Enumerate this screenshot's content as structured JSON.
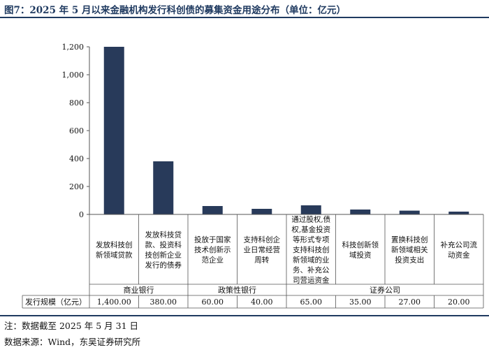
{
  "title": "图7：2025 年 5 月以来金融机构发行科创债的募集资金用途分布（单位：亿元）",
  "notes": {
    "note": "注：数据截至 2025 年 5 月 31 日",
    "source": "数据来源：Wind，东吴证券研究所"
  },
  "colors": {
    "bar": "#283a5a",
    "frame": "#1f3a60",
    "axis": "#555555"
  },
  "chart_data": {
    "type": "bar",
    "title": "图7：2025 年 5 月以来金融机构发行科创债的募集资金用途分布（单位：亿元）",
    "ylim": [
      0,
      1200
    ],
    "yticks": [
      "0",
      "200",
      "400",
      "600",
      "800",
      "1,000",
      "1,200"
    ],
    "ytick_values": [
      0,
      200,
      400,
      600,
      800,
      1000,
      1200
    ],
    "categories": [
      [
        "发放科技创",
        "新领域贷款"
      ],
      [
        "发放科技贷",
        "款、投资科",
        "技创新企业",
        "发行的债券"
      ],
      [
        "投放于国家",
        "技术创新示",
        "范企业"
      ],
      [
        "支持科创企",
        "业日常经营",
        "周转"
      ],
      [
        "通过股权,债",
        "权,基金投资",
        "等形式专项",
        "支持科技创",
        "新领域的业",
        "务、补充公",
        "司营运资金"
      ],
      [
        "科技创新领",
        "域投资"
      ],
      [
        "置换科技创",
        "新领域相关",
        "投资支出"
      ],
      [
        "补充公司流",
        "动资金"
      ]
    ],
    "values": [
      1400,
      380,
      60,
      40,
      65,
      35,
      27,
      20
    ],
    "value_labels": [
      "1,400.00",
      "380.00",
      "60.00",
      "40.00",
      "65.00",
      "35.00",
      "27.00",
      "20.00"
    ],
    "groups": [
      {
        "label": "商业银行",
        "count": 2
      },
      {
        "label": "政策性银行",
        "count": 2
      },
      {
        "label": "证券公司",
        "count": 4
      }
    ],
    "row_label": "发行规模（亿元）",
    "grid": false,
    "legend": "none"
  }
}
